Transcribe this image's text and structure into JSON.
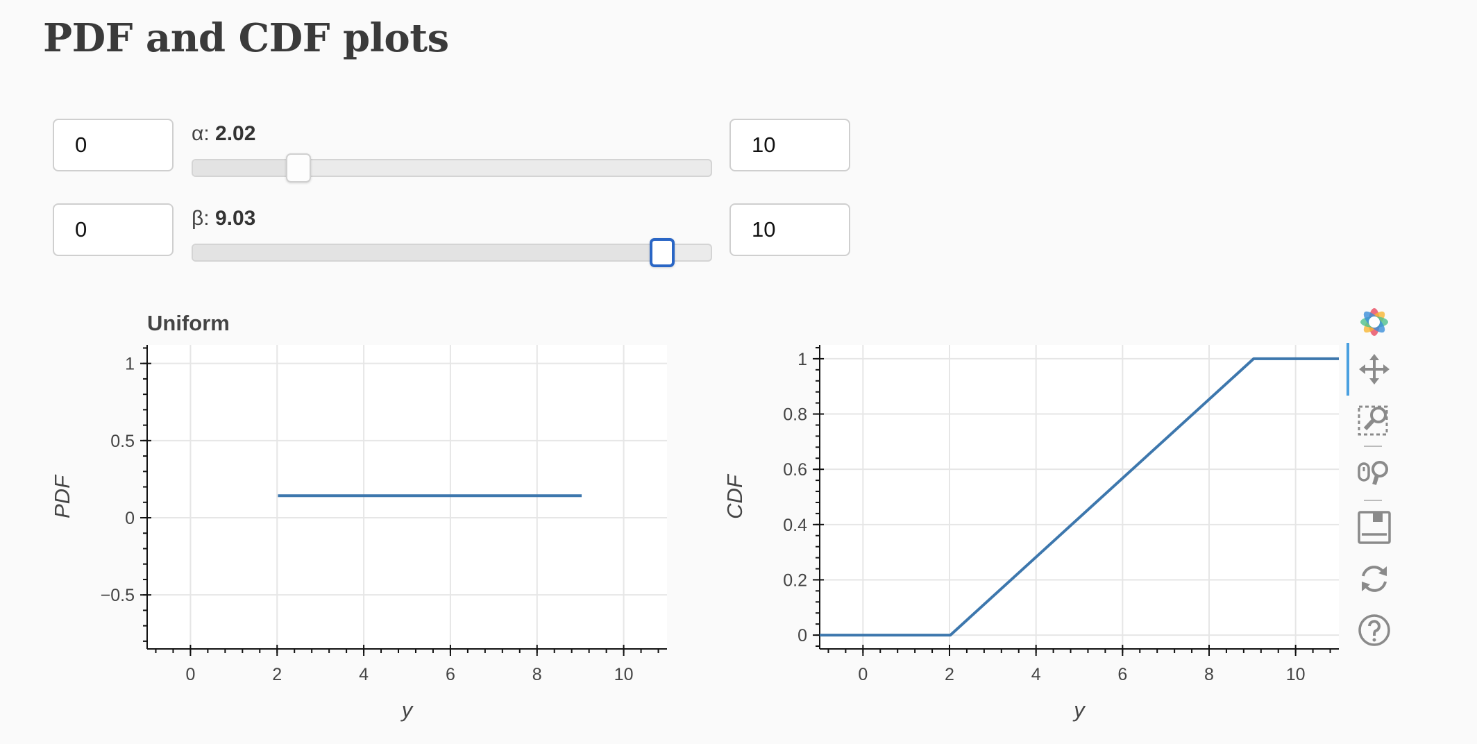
{
  "page": {
    "title": "PDF and CDF plots"
  },
  "controls": {
    "alpha": {
      "min_value": "0",
      "max_value": "10",
      "label": "α: ",
      "value_text": "2.02",
      "value": 2.02,
      "min": 0,
      "max": 10
    },
    "beta": {
      "min_value": "0",
      "max_value": "10",
      "label": "β: ",
      "value_text": "9.03",
      "value": 9.03,
      "min": 0,
      "max": 10
    }
  },
  "chart_data": [
    {
      "type": "line",
      "title": "Uniform",
      "xlabel": "y",
      "ylabel": "PDF",
      "xlim": [
        -1,
        11
      ],
      "ylim": [
        -0.85,
        1.12
      ],
      "x_ticks": [
        0,
        2,
        4,
        6,
        8,
        10
      ],
      "x_tick_labels": [
        "0",
        "2",
        "4",
        "6",
        "8",
        "10"
      ],
      "y_ticks": [
        -0.5,
        0,
        0.5,
        1
      ],
      "y_tick_labels": [
        "−0.5",
        "0",
        "0.5",
        "1"
      ],
      "grid": true,
      "series": [
        {
          "color": "#3d77ad",
          "x": [
            2.02,
            9.03
          ],
          "y": [
            0.1427,
            0.1427
          ]
        }
      ]
    },
    {
      "type": "line",
      "title": "",
      "xlabel": "y",
      "ylabel": "CDF",
      "xlim": [
        -1,
        11
      ],
      "ylim": [
        -0.05,
        1.05
      ],
      "x_ticks": [
        0,
        2,
        4,
        6,
        8,
        10
      ],
      "x_tick_labels": [
        "0",
        "2",
        "4",
        "6",
        "8",
        "10"
      ],
      "y_ticks": [
        0,
        0.2,
        0.4,
        0.6,
        0.8,
        1
      ],
      "y_tick_labels": [
        "0",
        "0.2",
        "0.4",
        "0.6",
        "0.8",
        "1"
      ],
      "grid": true,
      "series": [
        {
          "color": "#3d77ad",
          "x": [
            -1,
            2.02,
            9.03,
            11
          ],
          "y": [
            0,
            0,
            1,
            1
          ]
        }
      ]
    }
  ],
  "toolbar": {
    "items": [
      "bokeh-logo-icon",
      "pan-icon",
      "box-zoom-icon",
      "wheel-zoom-icon",
      "save-icon",
      "reset-icon",
      "help-icon"
    ],
    "active": "pan-icon",
    "accent_color": "#4aa0e0"
  }
}
